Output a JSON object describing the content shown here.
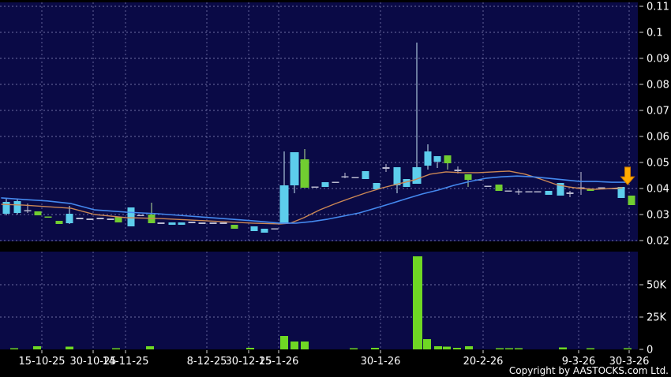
{
  "footer": {
    "copyright": "Copyright by AASTOCKS.com Ltd."
  },
  "colors": {
    "panel_bg": "#0a0a46",
    "grid": "#8080b4",
    "axis_text": "#ffffff",
    "tick": "#d8d8d8",
    "volume_bar": "#6fd824",
    "ma_fast": "#cc8855",
    "ma_slow": "#4488ee",
    "arrow": "#ffaa00",
    "arrow_edge": "#c87700",
    "candle": {
      "c": "#5dcdec",
      "g": "#71cd31",
      "w": "#b9b9cf"
    },
    "wick": {
      "c": "#c9e9f5",
      "g": "#b9e49a",
      "w": "#c3c3d6"
    }
  },
  "chart_data": {
    "type": "candlestick",
    "title": "",
    "panels": [
      "price",
      "volume"
    ],
    "grid": true,
    "price_axis": {
      "side": "right",
      "ylim": [
        0.02,
        0.11
      ],
      "ticks": [
        {
          "label": "0.11",
          "value": 0.11
        },
        {
          "label": "0.1",
          "value": 0.1
        },
        {
          "label": "0.09",
          "value": 0.09
        },
        {
          "label": "0.08",
          "value": 0.08
        },
        {
          "label": "0.07",
          "value": 0.07
        },
        {
          "label": "0.06",
          "value": 0.06
        },
        {
          "label": "0.05",
          "value": 0.05
        },
        {
          "label": "0.04",
          "value": 0.04
        },
        {
          "label": "0.03",
          "value": 0.03
        },
        {
          "label": "0.02",
          "value": 0.02
        }
      ]
    },
    "volume_axis": {
      "side": "right",
      "unit": "shares",
      "ticks": [
        {
          "label": "50K",
          "value": 50
        },
        {
          "label": "25K",
          "value": 25
        },
        {
          "label": "0",
          "value": 0
        }
      ]
    },
    "x_axis": {
      "labels": [
        "15-10-25",
        "30-10-25",
        "14-11-25",
        "8-12-25",
        "30-12-25",
        "15-1-26",
        "30-1-26",
        "20-2-26",
        "9-3-26",
        "30-3-26"
      ],
      "tick_x": [
        53,
        118,
        159,
        262,
        315,
        353,
        482,
        612,
        733,
        797
      ]
    },
    "candles_note": "each = [x_px, body_top_price, body_bottom_price, wick_high_price, wick_low_price, color(c=cyan,g=green,w=gray-doji), optional_width_px]",
    "candles": [
      [
        8,
        0.0348,
        0.0303,
        0.0361,
        0.0297,
        "c"
      ],
      [
        22,
        0.0352,
        0.0306,
        0.0361,
        0.03,
        "c"
      ],
      [
        35,
        0.0315,
        0.0315,
        0.0342,
        0.0306,
        "w"
      ],
      [
        48,
        0.0312,
        0.0297,
        null,
        null,
        "g"
      ],
      [
        61,
        0.0291,
        0.0291,
        null,
        null,
        "g"
      ],
      [
        75,
        0.0276,
        0.0264,
        null,
        null,
        "g"
      ],
      [
        88,
        0.0303,
        0.0267,
        0.0333,
        0.0264,
        "c"
      ],
      [
        101,
        0.0285,
        0.0285,
        null,
        null,
        "w"
      ],
      [
        114,
        0.0282,
        0.0282,
        null,
        null,
        "w"
      ],
      [
        127,
        0.0285,
        0.0285,
        null,
        null,
        "w"
      ],
      [
        140,
        0.0282,
        0.0282,
        null,
        null,
        "w"
      ],
      [
        150,
        0.0291,
        0.027,
        null,
        null,
        "g"
      ],
      [
        166,
        0.0327,
        0.0255,
        null,
        null,
        "c"
      ],
      [
        178,
        0.0297,
        0.0297,
        null,
        null,
        "w"
      ],
      [
        192,
        0.03,
        0.0267,
        0.0345,
        0.0267,
        "g"
      ],
      [
        204,
        0.0267,
        0.0267,
        null,
        null,
        "w"
      ],
      [
        218,
        0.027,
        0.0261,
        null,
        null,
        "c"
      ],
      [
        230,
        0.027,
        0.0261,
        null,
        null,
        "c"
      ],
      [
        243,
        0.027,
        0.027,
        null,
        null,
        "w"
      ],
      [
        256,
        0.0267,
        0.0267,
        null,
        null,
        "w"
      ],
      [
        270,
        0.0267,
        0.0267,
        null,
        null,
        "w"
      ],
      [
        283,
        0.0267,
        0.0267,
        null,
        null,
        "w"
      ],
      [
        297,
        0.0261,
        0.0245,
        null,
        null,
        "g"
      ],
      [
        322,
        0.0255,
        0.0236,
        null,
        null,
        "c"
      ],
      [
        335,
        0.0245,
        0.023,
        null,
        null,
        "c"
      ],
      [
        348,
        0.0245,
        0.0245,
        null,
        null,
        "w"
      ],
      [
        360,
        0.0412,
        0.0267,
        0.0542,
        0.0267,
        "c",
        11
      ],
      [
        373,
        0.0539,
        0.0412,
        0.0539,
        0.0382,
        "c",
        11
      ],
      [
        386,
        0.0512,
        0.0403,
        0.0552,
        0.0403,
        "g",
        11
      ],
      [
        399,
        0.0406,
        0.0406,
        null,
        null,
        "w"
      ],
      [
        412,
        0.0424,
        0.0406,
        null,
        null,
        "c"
      ],
      [
        425,
        0.0424,
        0.0424,
        null,
        null,
        "w"
      ],
      [
        437,
        0.0445,
        0.0445,
        0.046,
        0.0439,
        "w"
      ],
      [
        450,
        0.0442,
        0.0442,
        null,
        null,
        "w"
      ],
      [
        463,
        0.0467,
        0.0436,
        null,
        null,
        "c"
      ],
      [
        477,
        0.0421,
        0.0397,
        null,
        null,
        "c"
      ],
      [
        489,
        0.0479,
        0.0479,
        0.0494,
        0.0464,
        "w"
      ],
      [
        503,
        0.0482,
        0.0412,
        0.0482,
        0.0382,
        "c"
      ],
      [
        515,
        0.0436,
        0.0406,
        null,
        null,
        "c"
      ],
      [
        528,
        0.0482,
        0.0418,
        0.0961,
        0.0418,
        "c",
        11
      ],
      [
        542,
        0.0542,
        0.0488,
        0.057,
        0.0473,
        "c"
      ],
      [
        554,
        0.0524,
        0.0503,
        0.0524,
        0.0479,
        "c"
      ],
      [
        567,
        0.0527,
        0.0497,
        0.0527,
        0.0473,
        "g"
      ],
      [
        580,
        0.047,
        0.047,
        0.0485,
        0.0458,
        "w"
      ],
      [
        593,
        0.0455,
        0.0433,
        0.0455,
        0.0406,
        "g"
      ],
      [
        606,
        0.0433,
        0.0433,
        null,
        null,
        "w"
      ],
      [
        618,
        0.0409,
        0.0409,
        null,
        null,
        "w"
      ],
      [
        632,
        0.0415,
        0.0391,
        null,
        null,
        "g"
      ],
      [
        644,
        0.0391,
        0.0391,
        null,
        null,
        "w"
      ],
      [
        657,
        0.0388,
        0.0388,
        0.0397,
        0.0376,
        "w"
      ],
      [
        670,
        0.0388,
        0.0388,
        null,
        null,
        "w"
      ],
      [
        681,
        0.0388,
        0.0388,
        null,
        null,
        "w"
      ],
      [
        695,
        0.0391,
        0.0376,
        null,
        null,
        "c"
      ],
      [
        710,
        0.0421,
        0.0373,
        null,
        null,
        "c"
      ],
      [
        722,
        0.0382,
        0.0382,
        0.0391,
        0.0367,
        "w"
      ],
      [
        736,
        0.0403,
        0.0403,
        0.0464,
        0.0376,
        "w"
      ],
      [
        748,
        0.0397,
        0.0391,
        null,
        null,
        "g"
      ],
      [
        762,
        0.0403,
        0.0403,
        null,
        null,
        "w"
      ],
      [
        774,
        0.04,
        0.04,
        null,
        null,
        "w"
      ],
      [
        781,
        0.04,
        0.04,
        null,
        null,
        "w"
      ],
      [
        787,
        0.0406,
        0.0364,
        null,
        null,
        "c"
      ],
      [
        800,
        0.0373,
        0.0336,
        null,
        null,
        "g"
      ]
    ],
    "volume_bars_note": "each = [x_px, volume_in_thousands]",
    "volume_bars_k": [
      [
        18,
        1
      ],
      [
        47,
        2.5
      ],
      [
        88,
        2
      ],
      [
        147,
        0.8
      ],
      [
        190,
        2.5
      ],
      [
        317,
        1.2
      ],
      [
        360,
        10.5
      ],
      [
        373,
        6
      ],
      [
        386,
        6
      ],
      [
        448,
        0.8
      ],
      [
        475,
        1.2
      ],
      [
        529,
        72
      ],
      [
        541,
        8
      ],
      [
        555,
        2.5
      ],
      [
        566,
        2
      ],
      [
        579,
        1.2
      ],
      [
        594,
        2.5
      ],
      [
        633,
        1
      ],
      [
        645,
        1
      ],
      [
        657,
        1
      ],
      [
        713,
        1.5
      ],
      [
        748,
        1
      ],
      [
        795,
        0.8
      ]
    ],
    "series": [
      {
        "name": "ma-fast-orange",
        "points": [
          [
            2,
            0.0339
          ],
          [
            30,
            0.0336
          ],
          [
            60,
            0.033
          ],
          [
            90,
            0.0324
          ],
          [
            120,
            0.03
          ],
          [
            160,
            0.0288
          ],
          [
            200,
            0.0285
          ],
          [
            240,
            0.0279
          ],
          [
            280,
            0.0273
          ],
          [
            320,
            0.0267
          ],
          [
            355,
            0.0264
          ],
          [
            368,
            0.0267
          ],
          [
            385,
            0.0288
          ],
          [
            405,
            0.0318
          ],
          [
            425,
            0.0342
          ],
          [
            445,
            0.0364
          ],
          [
            465,
            0.0385
          ],
          [
            485,
            0.0403
          ],
          [
            505,
            0.0418
          ],
          [
            525,
            0.0433
          ],
          [
            545,
            0.0455
          ],
          [
            565,
            0.0464
          ],
          [
            585,
            0.0461
          ],
          [
            605,
            0.0461
          ],
          [
            625,
            0.0464
          ],
          [
            645,
            0.0467
          ],
          [
            665,
            0.0455
          ],
          [
            685,
            0.0436
          ],
          [
            705,
            0.0415
          ],
          [
            720,
            0.0406
          ],
          [
            735,
            0.04
          ],
          [
            755,
            0.0397
          ],
          [
            775,
            0.04
          ],
          [
            788,
            0.0403
          ]
        ]
      },
      {
        "name": "ma-slow-blue",
        "points": [
          [
            2,
            0.0364
          ],
          [
            30,
            0.0358
          ],
          [
            60,
            0.0352
          ],
          [
            90,
            0.0342
          ],
          [
            120,
            0.0318
          ],
          [
            160,
            0.0309
          ],
          [
            200,
            0.0303
          ],
          [
            240,
            0.0294
          ],
          [
            280,
            0.0285
          ],
          [
            320,
            0.0276
          ],
          [
            355,
            0.0267
          ],
          [
            375,
            0.0267
          ],
          [
            395,
            0.0273
          ],
          [
            415,
            0.0282
          ],
          [
            435,
            0.0294
          ],
          [
            455,
            0.0306
          ],
          [
            475,
            0.0324
          ],
          [
            495,
            0.0342
          ],
          [
            515,
            0.0361
          ],
          [
            535,
            0.0379
          ],
          [
            555,
            0.0394
          ],
          [
            575,
            0.0412
          ],
          [
            595,
            0.0427
          ],
          [
            615,
            0.0439
          ],
          [
            635,
            0.0445
          ],
          [
            655,
            0.0448
          ],
          [
            675,
            0.0445
          ],
          [
            695,
            0.0439
          ],
          [
            715,
            0.0433
          ],
          [
            735,
            0.0427
          ],
          [
            755,
            0.0427
          ],
          [
            775,
            0.0424
          ],
          [
            793,
            0.0424
          ]
        ]
      }
    ],
    "annotation_arrow": {
      "x": 795,
      "price_top": 0.0482,
      "price_tip": 0.0415
    }
  }
}
